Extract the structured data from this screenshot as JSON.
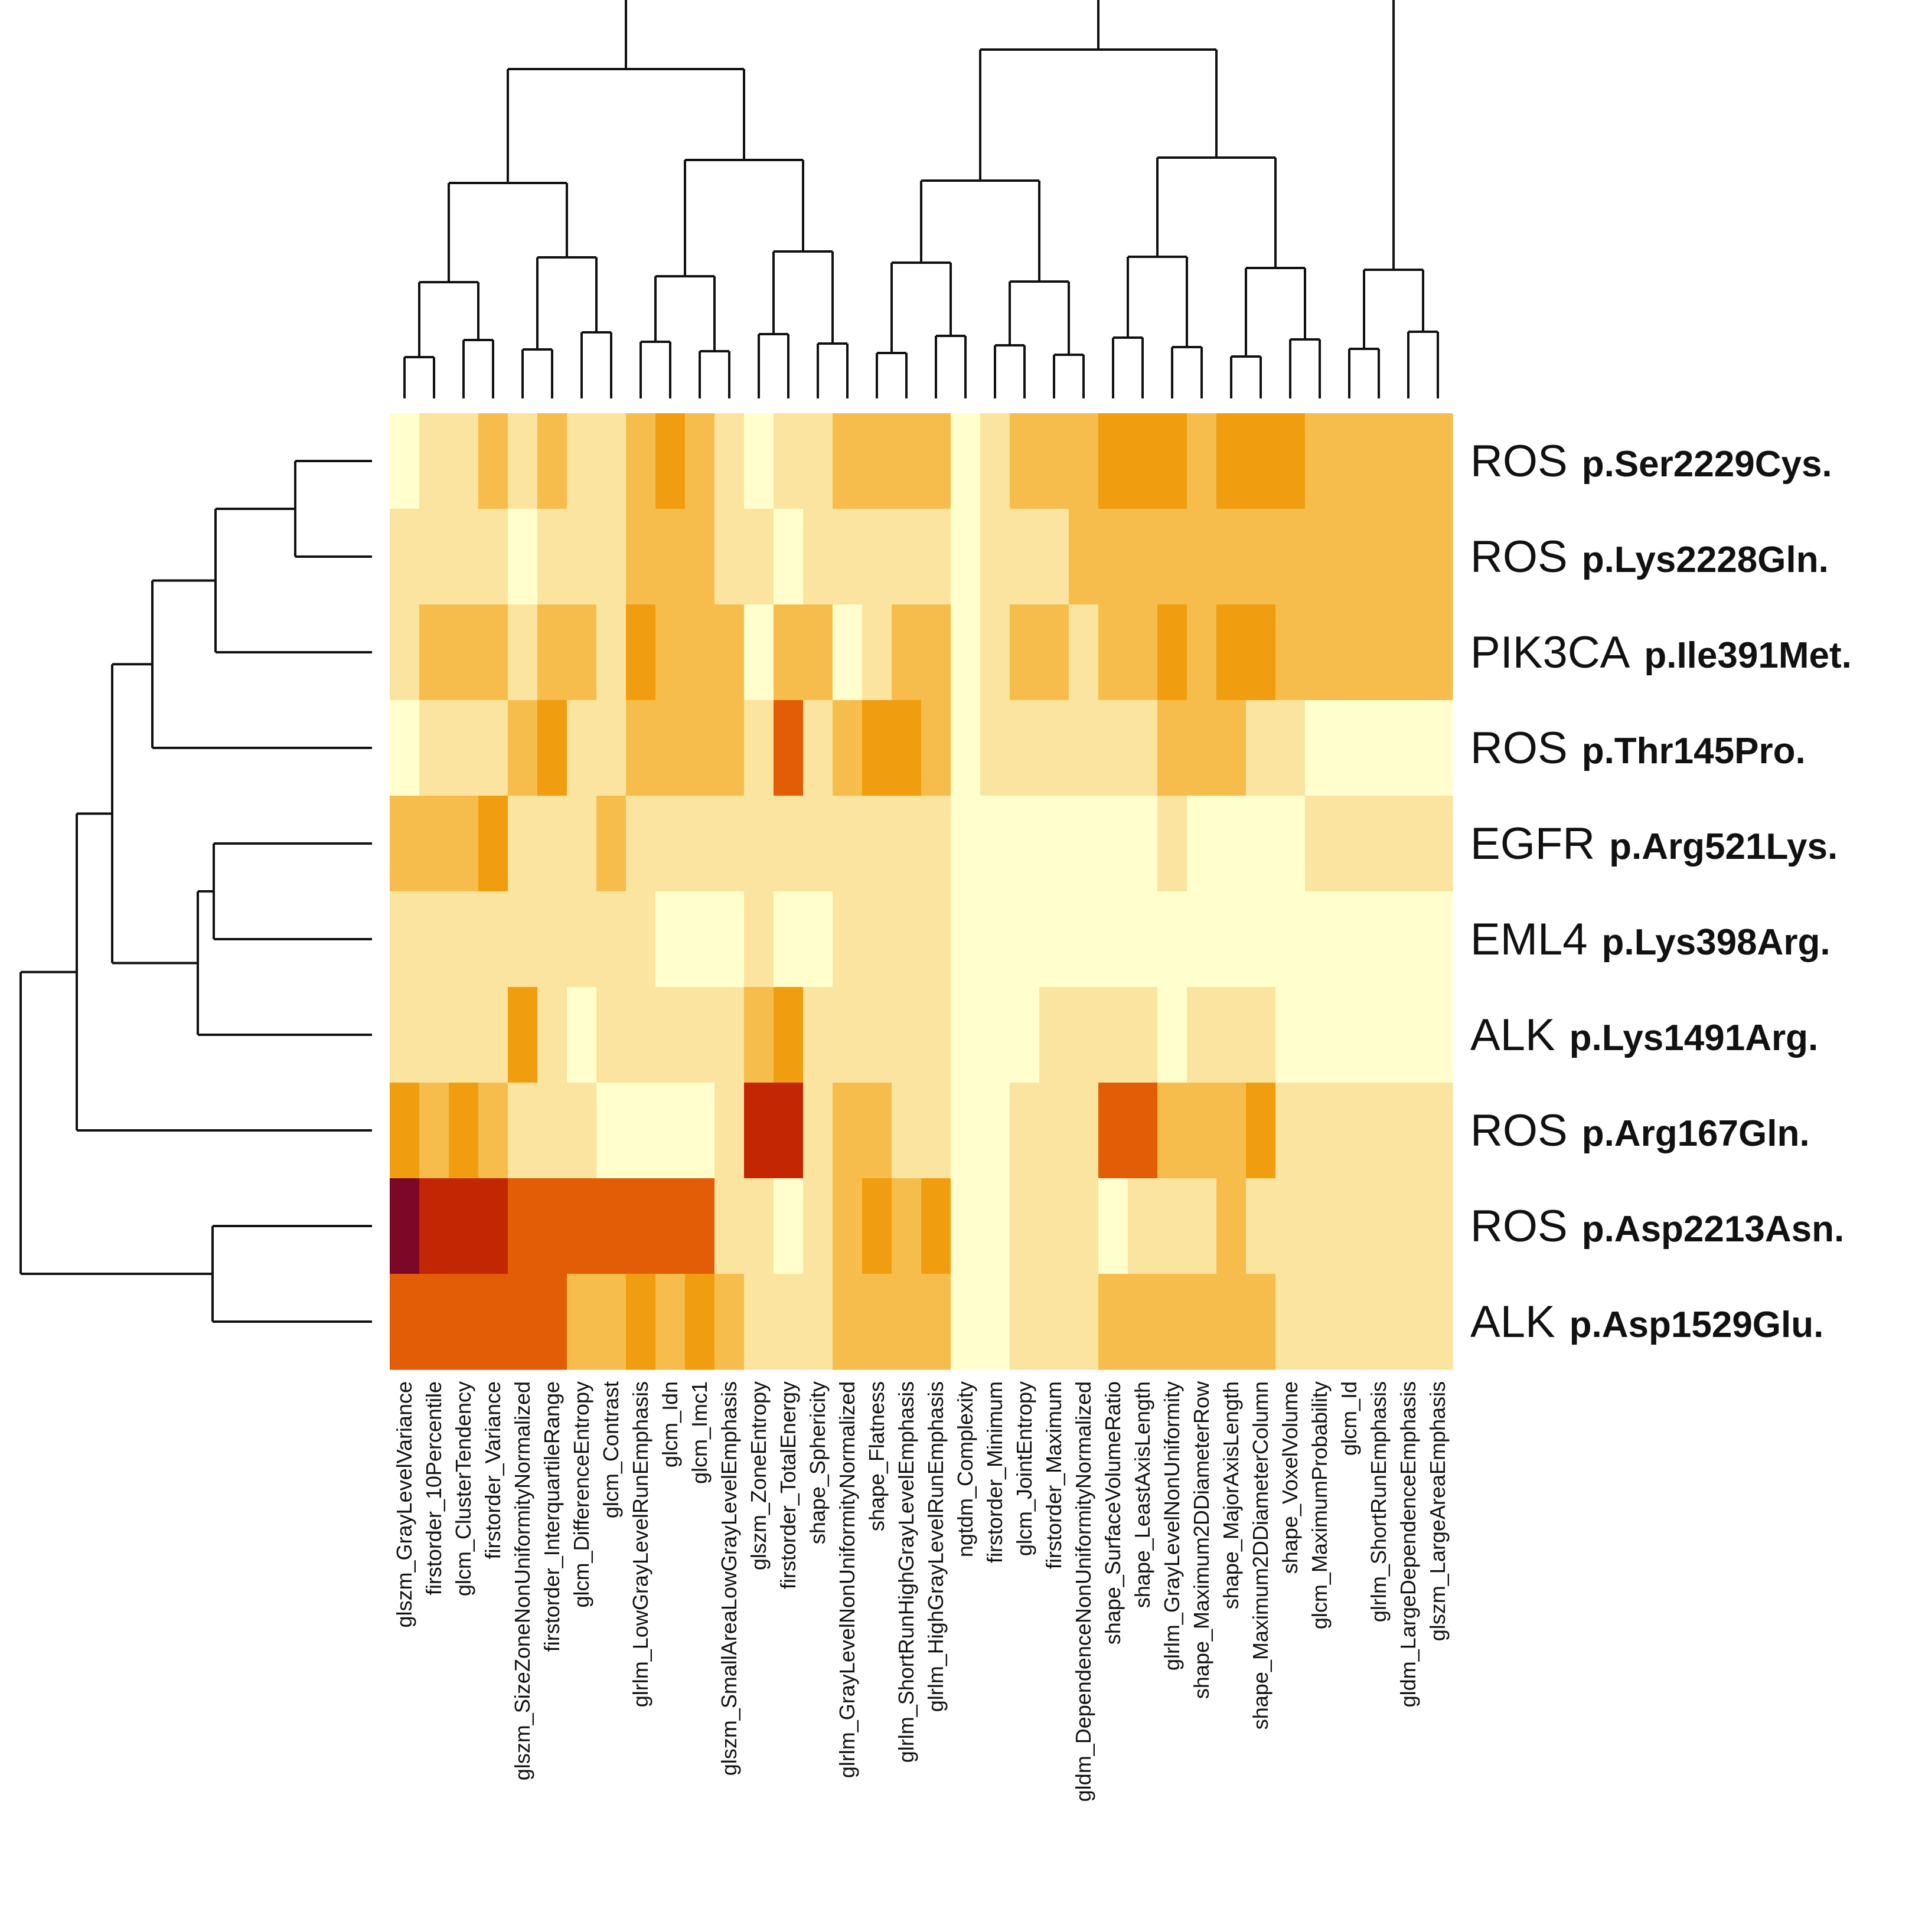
{
  "chart_data": {
    "type": "heatmap",
    "title": "",
    "color_scale": [
      "#fffecc",
      "#fbe4a0",
      "#f7bd4c",
      "#f09d10",
      "#e35d06",
      "#c22602",
      "#7d0727"
    ],
    "rows": [
      {
        "gene": "ROS",
        "mutation": "p.Ser2229Cys."
      },
      {
        "gene": "ROS",
        "mutation": "p.Lys2228Gln."
      },
      {
        "gene": "PIK3CA",
        "mutation": "p.Ile391Met."
      },
      {
        "gene": "ROS",
        "mutation": "p.Thr145Pro."
      },
      {
        "gene": "EGFR",
        "mutation": "p.Arg521Lys."
      },
      {
        "gene": "EML4",
        "mutation": "p.Lys398Arg."
      },
      {
        "gene": "ALK",
        "mutation": "p.Lys1491Arg."
      },
      {
        "gene": "ROS",
        "mutation": "p.Arg167Gln."
      },
      {
        "gene": "ROS",
        "mutation": "p.Asp2213Asn."
      },
      {
        "gene": "ALK",
        "mutation": "p.Asp1529Glu."
      }
    ],
    "column_labels": [
      "glszm_GrayLevelVariance",
      "firstorder_10Percentile",
      "glcm_ClusterTendency",
      "firstorder_Variance",
      "glszm_SizeZoneNonUniformityNormalized",
      "firstorder_InterquartileRange",
      "glcm_DifferenceEntropy",
      "glcm_Contrast",
      "glrlm_LowGrayLevelRunEmphasis",
      "glcm_Idn",
      "glcm_Imc1",
      "glszm_SmallAreaLowGrayLevelEmphasis",
      "glszm_ZoneEntropy",
      "firstorder_TotalEnergy",
      "shape_Sphericity",
      "glrlm_GrayLevelNonUniformityNormalized",
      "shape_Flatness",
      "glrlm_ShortRunHighGrayLevelEmphasis",
      "glrlm_HighGrayLevelRunEmphasis",
      "ngtdm_Complexity",
      "firstorder_Minimum",
      "glcm_JointEntropy",
      "firstorder_Maximum",
      "gldm_DependenceNonUniformityNormalized",
      "shape_SurfaceVolumeRatio",
      "shape_LeastAxisLength",
      "glrlm_GrayLevelNonUniformity",
      "shape_Maximum2DDiameterRow",
      "shape_MajorAxisLength",
      "shape_Maximum2DDiameterColumn",
      "shape_VoxelVolume",
      "glcm_MaximumProbability",
      "glcm_Id",
      "glrlm_ShortRunEmphasis",
      "gldm_LargeDependenceEmphasis",
      "glszm_LargeAreaEmphasis"
    ],
    "values": [
      [
        0,
        1,
        1,
        2,
        1,
        2,
        1,
        1,
        2,
        3,
        2,
        1,
        0,
        1,
        1,
        2,
        2,
        2,
        2,
        0,
        1,
        2,
        2,
        2,
        3,
        3,
        3,
        2,
        3,
        3,
        3,
        2,
        2,
        2,
        2,
        2
      ],
      [
        1,
        1,
        1,
        1,
        0,
        1,
        1,
        1,
        2,
        2,
        2,
        1,
        1,
        0,
        1,
        1,
        1,
        1,
        1,
        0,
        1,
        1,
        1,
        2,
        2,
        2,
        2,
        2,
        2,
        2,
        2,
        2,
        2,
        2,
        2,
        2
      ],
      [
        1,
        2,
        2,
        2,
        1,
        2,
        2,
        1,
        3,
        2,
        2,
        2,
        0,
        2,
        2,
        0,
        1,
        2,
        2,
        0,
        1,
        2,
        2,
        1,
        2,
        2,
        3,
        2,
        3,
        3,
        2,
        2,
        2,
        2,
        2,
        2
      ],
      [
        0,
        1,
        1,
        1,
        2,
        3,
        1,
        1,
        2,
        2,
        2,
        2,
        1,
        4,
        1,
        2,
        3,
        3,
        2,
        0,
        1,
        1,
        1,
        1,
        1,
        1,
        2,
        2,
        2,
        1,
        1,
        0,
        0,
        0,
        0,
        0
      ],
      [
        2,
        2,
        2,
        3,
        1,
        1,
        1,
        2,
        1,
        1,
        1,
        1,
        1,
        1,
        1,
        1,
        1,
        1,
        1,
        0,
        0,
        0,
        0,
        0,
        0,
        0,
        1,
        0,
        0,
        0,
        0,
        1,
        1,
        1,
        1,
        1
      ],
      [
        1,
        1,
        1,
        1,
        1,
        1,
        1,
        1,
        1,
        0,
        0,
        0,
        1,
        0,
        0,
        1,
        1,
        1,
        1,
        0,
        0,
        0,
        0,
        0,
        0,
        0,
        0,
        0,
        0,
        0,
        0,
        0,
        0,
        0,
        0,
        0
      ],
      [
        1,
        1,
        1,
        1,
        3,
        1,
        0,
        1,
        1,
        1,
        1,
        1,
        2,
        3,
        1,
        1,
        1,
        1,
        1,
        0,
        0,
        0,
        1,
        1,
        1,
        1,
        0,
        1,
        1,
        1,
        0,
        0,
        0,
        0,
        0,
        0
      ],
      [
        3,
        2,
        3,
        2,
        1,
        1,
        1,
        0,
        0,
        0,
        0,
        1,
        5,
        5,
        1,
        2,
        2,
        1,
        1,
        0,
        0,
        1,
        1,
        1,
        4,
        4,
        2,
        2,
        2,
        3,
        1,
        1,
        1,
        1,
        1,
        1
      ],
      [
        6,
        5,
        5,
        5,
        4,
        4,
        4,
        4,
        4,
        4,
        4,
        1,
        1,
        0,
        1,
        2,
        3,
        2,
        3,
        0,
        0,
        1,
        1,
        1,
        0,
        1,
        1,
        1,
        2,
        1,
        1,
        1,
        1,
        1,
        1,
        1
      ],
      [
        4,
        4,
        4,
        4,
        4,
        4,
        2,
        2,
        3,
        2,
        3,
        2,
        1,
        1,
        1,
        2,
        2,
        2,
        2,
        0,
        0,
        1,
        1,
        1,
        2,
        2,
        2,
        2,
        2,
        2,
        1,
        1,
        1,
        1,
        1,
        1
      ]
    ]
  }
}
